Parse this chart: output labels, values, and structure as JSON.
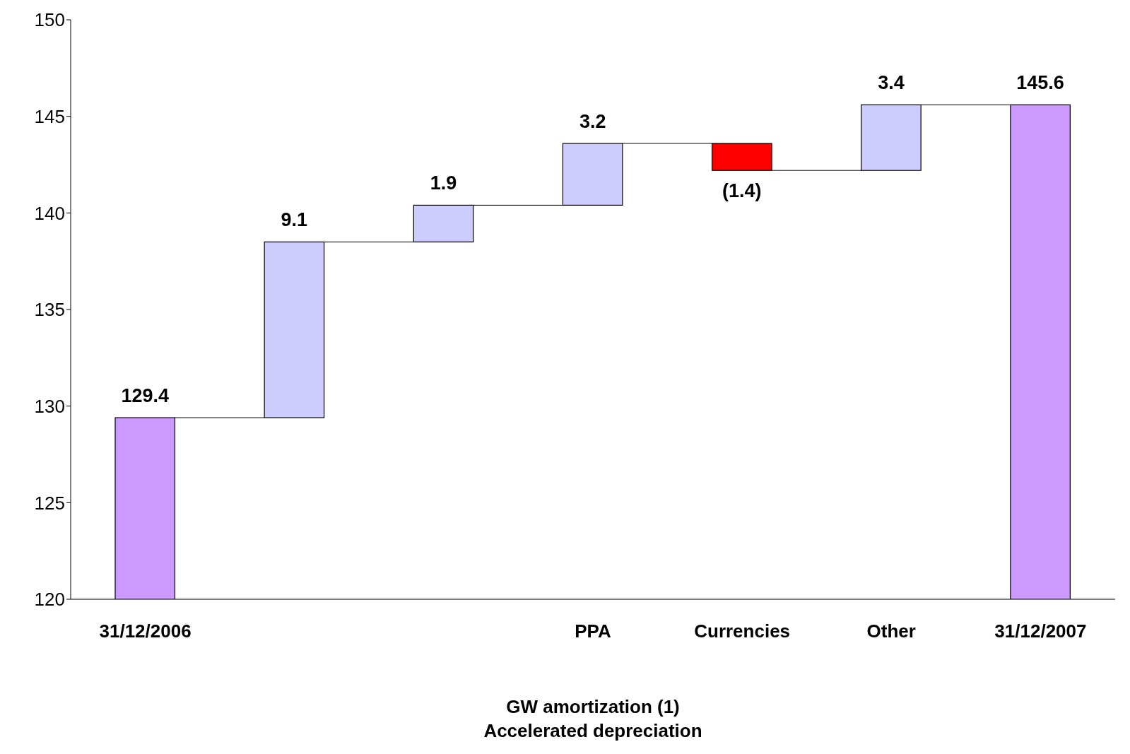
{
  "chart_data": {
    "type": "bar",
    "categories": [
      "31/12/2006",
      null,
      null,
      "PPA",
      "Currencies",
      "Other",
      "31/12/2007"
    ],
    "values": [
      129.4,
      9.1,
      1.9,
      3.2,
      -1.4,
      3.4,
      145.6
    ],
    "base": [
      null,
      129.4,
      138.5,
      140.4,
      143.6,
      142.2,
      null
    ],
    "colors": [
      "#cc99ff",
      "#ccccff",
      "#ccccff",
      "#ccccff",
      "#ff0000",
      "#ccccff",
      "#cc99ff"
    ],
    "value_labels": [
      "129.4",
      "9.1",
      "1.9",
      "3.2",
      "(1.4)",
      "3.4",
      "145.6"
    ],
    "ylim": [
      120,
      150
    ],
    "yticks": [
      120,
      125,
      130,
      135,
      140,
      145,
      150
    ],
    "grid": false,
    "legend": false,
    "annotations": [
      "GW amortization (1)",
      "Accelerated depreciation"
    ]
  }
}
